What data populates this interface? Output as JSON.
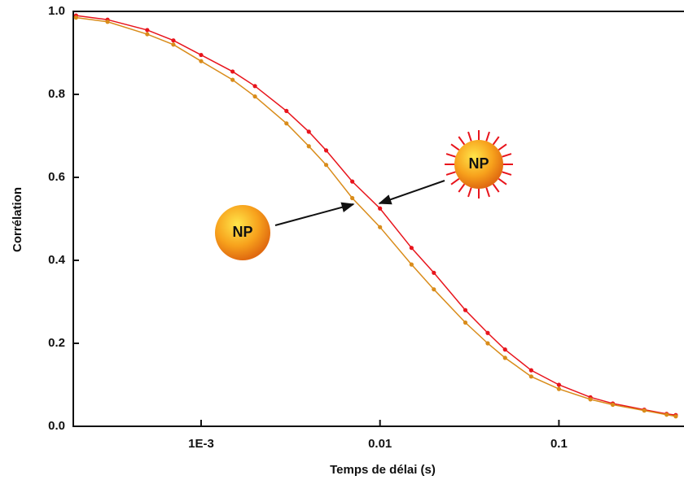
{
  "chart_data": {
    "type": "line",
    "x_label": "Temps de délai (s)",
    "y_label": "Corrélation",
    "log_x": true,
    "xlim": [
      0.000193,
      0.495
    ],
    "xticks": [
      {
        "value": 0.001,
        "label": "1E-3"
      },
      0.01,
      0.1
    ],
    "ylim": [
      0,
      1
    ],
    "yticks": [
      {
        "value": 0,
        "label": "0.0"
      },
      0.2,
      0.4,
      0.6,
      0.8,
      {
        "value": 1,
        "label": "1.0"
      }
    ],
    "x": [
      0.0002,
      0.0003,
      0.0005,
      0.0007,
      0.001,
      0.0015,
      0.002,
      0.003,
      0.004,
      0.005,
      0.007,
      0.01,
      0.015,
      0.02,
      0.03,
      0.04,
      0.05,
      0.07,
      0.1,
      0.15,
      0.2,
      0.3,
      0.4,
      0.45
    ],
    "series": [
      {
        "color": "#e8141c",
        "values": [
          0.99,
          0.98,
          0.955,
          0.93,
          0.895,
          0.855,
          0.82,
          0.76,
          0.71,
          0.665,
          0.59,
          0.525,
          0.43,
          0.37,
          0.28,
          0.225,
          0.185,
          0.135,
          0.1,
          0.07,
          0.055,
          0.04,
          0.03,
          0.027
        ]
      },
      {
        "color": "#d98c1a",
        "values": [
          0.985,
          0.975,
          0.945,
          0.92,
          0.88,
          0.835,
          0.795,
          0.73,
          0.675,
          0.63,
          0.55,
          0.48,
          0.39,
          0.33,
          0.25,
          0.2,
          0.165,
          0.12,
          0.09,
          0.065,
          0.052,
          0.038,
          0.028,
          0.024
        ]
      }
    ],
    "annotations": [
      "NP",
      "NP"
    ]
  }
}
